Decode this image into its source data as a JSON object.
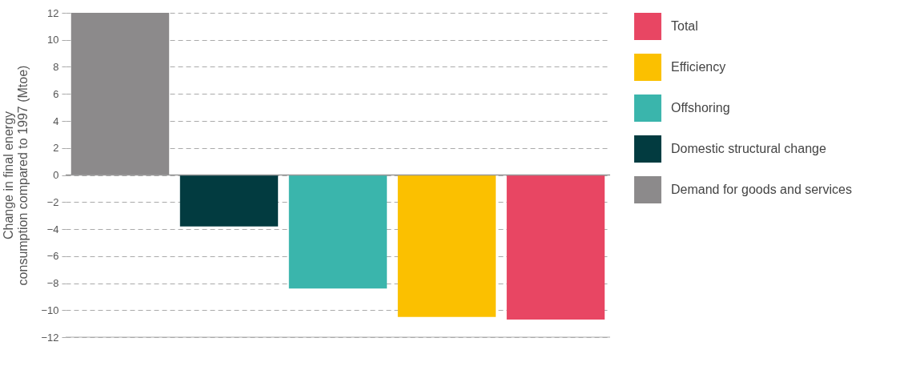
{
  "chart_data": {
    "type": "bar",
    "categories": [
      null,
      null,
      null,
      null,
      null
    ],
    "ylabel": "Change in final energy consumption compared to 1997 (Mtoe)",
    "series": [
      {
        "name": "Total",
        "color": "#e84663",
        "values": [
          null,
          null,
          null,
          null,
          -10.7
        ]
      },
      {
        "name": "Efficiency",
        "color": "#fbc000",
        "values": [
          null,
          null,
          null,
          -10.5,
          null
        ]
      },
      {
        "name": "Offshoring",
        "color": "#3ab5ac",
        "values": [
          null,
          null,
          -8.4,
          null,
          null
        ]
      },
      {
        "name": "Domestic structural change",
        "color": "#023b40",
        "values": [
          null,
          -3.8,
          null,
          null,
          null
        ]
      },
      {
        "name": "Demand for goods and services",
        "color": "#8c8a8b",
        "values": [
          12,
          null,
          null,
          null,
          null
        ]
      }
    ],
    "ylim": [
      -12,
      12
    ],
    "yticks": [
      -12,
      -10,
      -8,
      -6,
      -4,
      -2,
      0,
      2,
      4,
      6,
      8,
      10,
      12
    ],
    "grid": "y",
    "legend": "right",
    "tick_labels": "y",
    "ref_lines": [
      {
        "axis": "y",
        "value": 0,
        "label": null,
        "color": "#999999",
        "line_style": "solid"
      }
    ]
  }
}
